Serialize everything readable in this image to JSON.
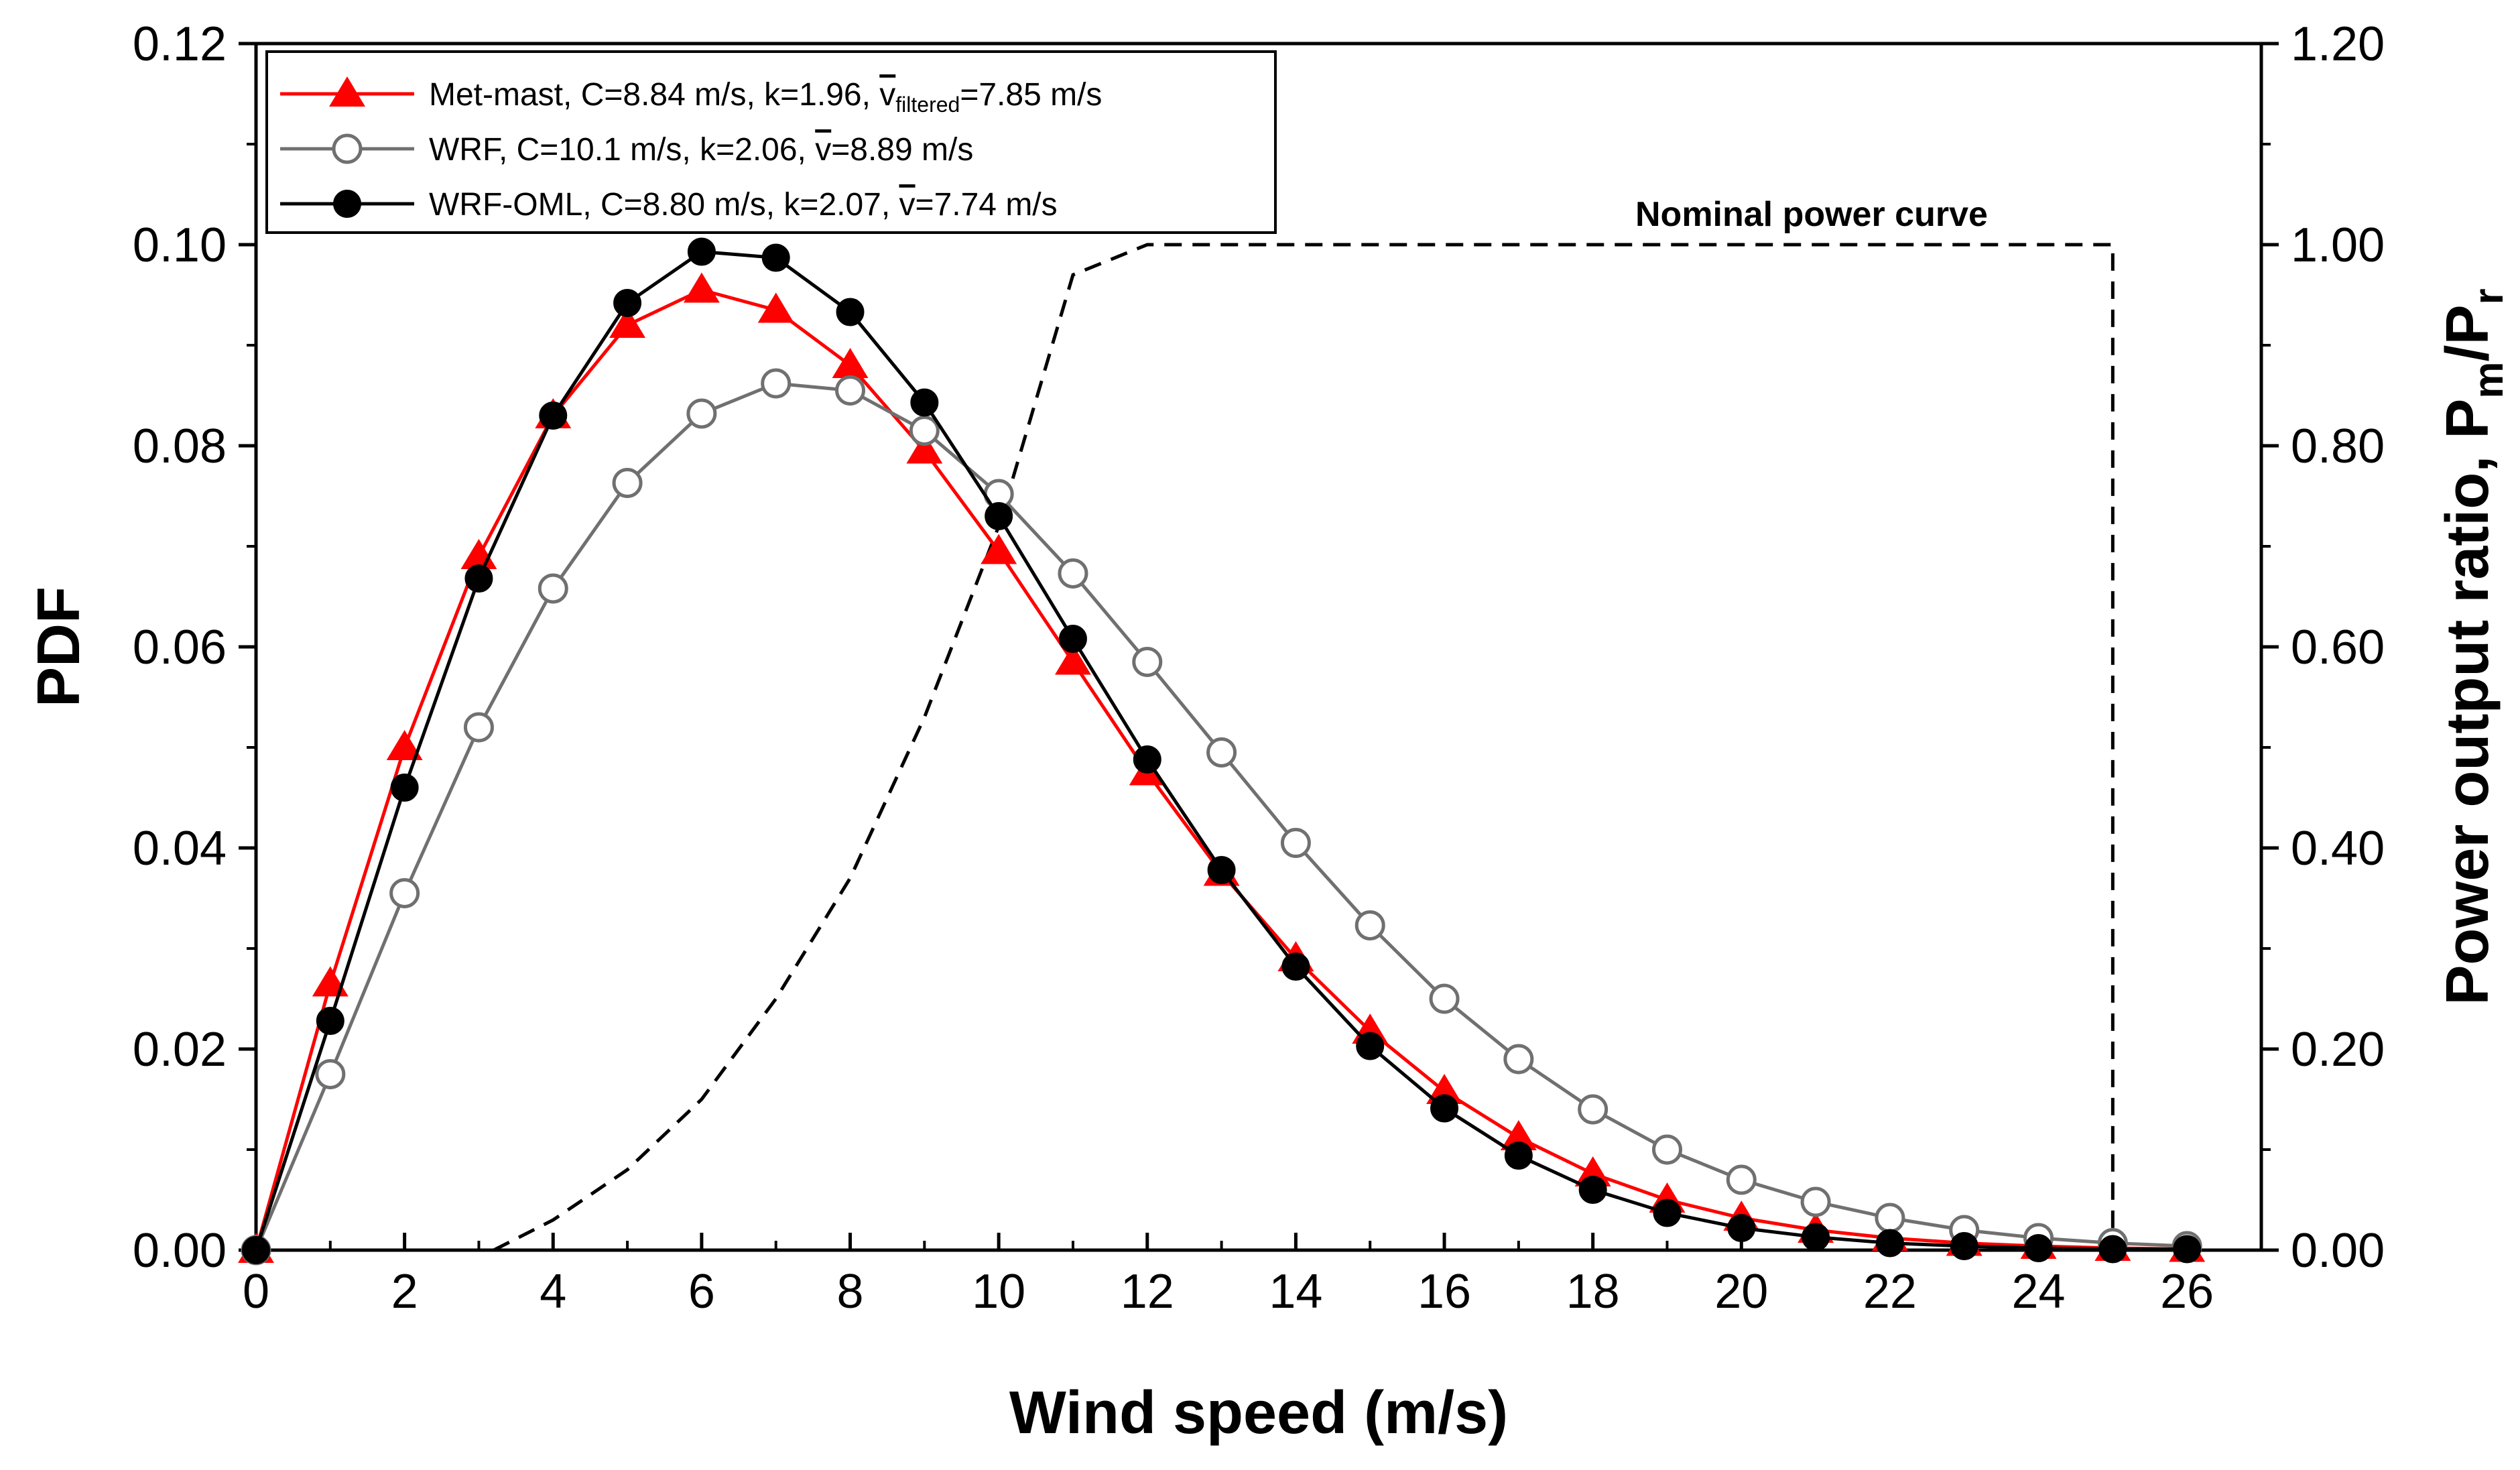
{
  "chart_data": {
    "type": "line",
    "title": "",
    "xlabel": "Wind speed (m/s)",
    "ylabel": "PDF",
    "y2label": "Power output ratio, P",
    "y2label_sub1": "m",
    "y2label_mid": "/P",
    "y2label_sub2": "r",
    "xlim": [
      0,
      27
    ],
    "ylim": [
      0,
      0.12
    ],
    "y2lim": [
      0,
      1.2
    ],
    "x_ticks": [
      0,
      2,
      4,
      6,
      8,
      10,
      12,
      14,
      16,
      18,
      20,
      22,
      24,
      26
    ],
    "x_tick_labels": [
      "0",
      "2",
      "4",
      "6",
      "8",
      "10",
      "12",
      "14",
      "16",
      "18",
      "20",
      "22",
      "24",
      "26"
    ],
    "y_ticks": [
      0,
      0.02,
      0.04,
      0.06,
      0.08,
      0.1,
      0.12
    ],
    "y_tick_labels": [
      "0.00",
      "0.02",
      "0.04",
      "0.06",
      "0.08",
      "0.10",
      "0.12"
    ],
    "y2_ticks": [
      0,
      0.2,
      0.4,
      0.6,
      0.8,
      1.0,
      1.2
    ],
    "y2_tick_labels": [
      "0.00",
      "0.20",
      "0.40",
      "0.60",
      "0.80",
      "1.00",
      "1.20"
    ],
    "grid": false,
    "legend_position": "top-left",
    "series": [
      {
        "name": "Met-mast",
        "legend_label": "Met-mast, C=8.84 m/s, k=1.96, ",
        "legend_vbar": "v",
        "legend_sub": "filtered",
        "legend_suffix": "=7.85 m/s",
        "color": "#ff0000",
        "marker": "triangle",
        "x": [
          0,
          1,
          2,
          3,
          4,
          5,
          6,
          7,
          8,
          9,
          10,
          11,
          12,
          13,
          14,
          15,
          16,
          17,
          18,
          19,
          20,
          21,
          22,
          23,
          24,
          25,
          26
        ],
        "values": [
          0,
          0.0265,
          0.05,
          0.069,
          0.083,
          0.092,
          0.0955,
          0.0935,
          0.088,
          0.0795,
          0.0695,
          0.0585,
          0.0475,
          0.0375,
          0.029,
          0.0218,
          0.0158,
          0.0112,
          0.0076,
          0.005,
          0.0032,
          0.002,
          0.0012,
          0.0007,
          0.0004,
          0.0002,
          0.0001
        ]
      },
      {
        "name": "WRF",
        "legend_label": "WRF, C=10.1 m/s, k=2.06, ",
        "legend_vbar": "v",
        "legend_sub": "",
        "legend_suffix": "=8.89 m/s",
        "color": "#707070",
        "marker": "open-circle",
        "x": [
          0,
          1,
          2,
          3,
          4,
          5,
          6,
          7,
          8,
          9,
          10,
          11,
          12,
          13,
          14,
          15,
          16,
          17,
          18,
          19,
          20,
          21,
          22,
          23,
          24,
          25,
          26
        ],
        "values": [
          0,
          0.0175,
          0.0355,
          0.052,
          0.0658,
          0.0763,
          0.0832,
          0.0862,
          0.0855,
          0.0815,
          0.0752,
          0.0673,
          0.0585,
          0.0495,
          0.0405,
          0.0323,
          0.025,
          0.019,
          0.014,
          0.01,
          0.007,
          0.0048,
          0.0032,
          0.002,
          0.0012,
          0.0007,
          0.0004
        ]
      },
      {
        "name": "WRF-OML",
        "legend_label": "WRF-OML, C=8.80 m/s, k=2.07, ",
        "legend_vbar": "v",
        "legend_sub": "",
        "legend_suffix": "=7.74 m/s",
        "color": "#000000",
        "marker": "filled-circle",
        "x": [
          0,
          1,
          2,
          3,
          4,
          5,
          6,
          7,
          8,
          9,
          10,
          11,
          12,
          13,
          14,
          15,
          16,
          17,
          18,
          19,
          20,
          21,
          22,
          23,
          24,
          25,
          26
        ],
        "values": [
          0,
          0.0228,
          0.046,
          0.0668,
          0.083,
          0.0942,
          0.0993,
          0.0987,
          0.0933,
          0.0843,
          0.073,
          0.0608,
          0.0488,
          0.0378,
          0.0282,
          0.0203,
          0.0141,
          0.0094,
          0.006,
          0.0037,
          0.0022,
          0.0013,
          0.0007,
          0.0004,
          0.0002,
          0.0001,
          0.0001
        ]
      }
    ],
    "power_curve": {
      "name": "Nominal power curve",
      "axis": "y2",
      "style": "dashed",
      "color": "#000000",
      "x": [
        3.2,
        4,
        5,
        6,
        7,
        8,
        9,
        10,
        11,
        12,
        25,
        25
      ],
      "values": [
        0,
        0.03,
        0.08,
        0.15,
        0.25,
        0.37,
        0.53,
        0.72,
        0.97,
        1.0,
        1.0,
        0
      ]
    },
    "annotation": "Nominal power curve"
  }
}
